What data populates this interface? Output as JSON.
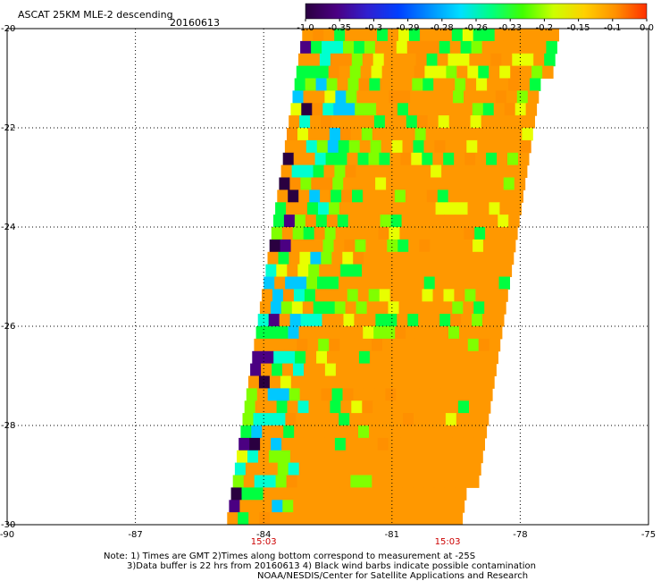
{
  "chart_data": {
    "type": "heatmap",
    "title": "ASCAT 25KM MLE-2 descending",
    "date": "20160613",
    "xlim": [
      -90,
      -75
    ],
    "ylim": [
      -30,
      -20
    ],
    "x_ticks": [
      "-90",
      "-87",
      "-84",
      "-81",
      "-78",
      "-75"
    ],
    "x_tick_values": [
      -90,
      -87,
      -84,
      -81,
      -78,
      -75
    ],
    "y_ticks": [
      "-20",
      "-22",
      "-24",
      "-26",
      "-28",
      "-30"
    ],
    "y_tick_values": [
      -20,
      -22,
      -24,
      -26,
      -28,
      -30
    ],
    "grid": true,
    "colorbar": {
      "labels": [
        "-1.0",
        "-0.35",
        "-0.3",
        "-0.29",
        "-0.28",
        "-0.26",
        "-0.23",
        "-0.2",
        "-0.15",
        "-0.1",
        "0.0"
      ],
      "colors": [
        "#2a0040",
        "#4b0082",
        "#3020d0",
        "#0040ff",
        "#0090ff",
        "#00e0ff",
        "#00ff80",
        "#40ff00",
        "#ccff00",
        "#ffd000",
        "#ff9000",
        "#ff3000"
      ]
    },
    "time_labels": [
      {
        "lon": -84,
        "text": "15:03"
      },
      {
        "lon": -79.7,
        "text": "15:03"
      }
    ],
    "swath": {
      "north_lat": -20,
      "south_lat": -30,
      "north_lon": [
        -83.1,
        -77.2
      ],
      "south_lon": [
        -84.9,
        -79.3
      ],
      "cell_deg": 0.25,
      "dominant_value": -0.12,
      "inner_band_values": [
        -0.2,
        -0.15,
        -0.12,
        -0.1,
        -0.23
      ],
      "edge_values": [
        -1.0,
        -0.35,
        -0.28,
        -0.26,
        -0.23,
        -0.2
      ]
    }
  },
  "notes": {
    "line1": "Note: 1) Times are GMT 2)Times along bottom correspond to measurement at -25S",
    "line2": "3)Data buffer is 22 hrs from 20160613 4) Black wind barbs indicate possible contamination",
    "line3": "NOAA/NESDIS/Center for Satellite Applications and Research"
  }
}
